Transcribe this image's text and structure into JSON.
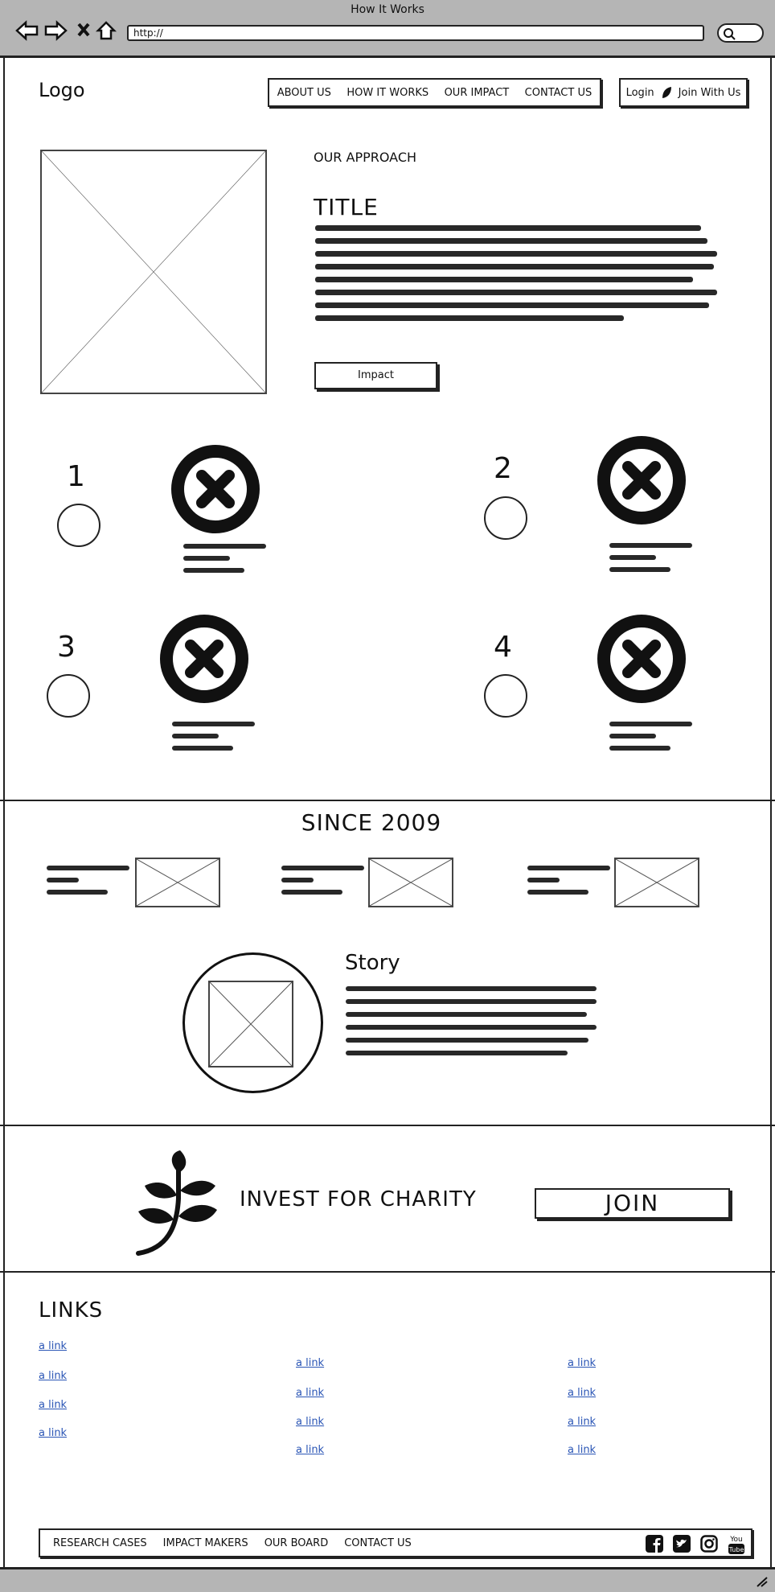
{
  "window": {
    "title": "How It Works",
    "url": "http://"
  },
  "header": {
    "logo": "Logo",
    "nav": [
      "ABOUT US",
      "HOW IT WORKS",
      "OUR IMPACT",
      "CONTACT US"
    ],
    "login": "Login",
    "join": "Join With Us"
  },
  "approach": {
    "eyebrow": "OUR APPROACH",
    "title": "TITLE",
    "button": "Impact"
  },
  "steps": [
    {
      "number": "1"
    },
    {
      "number": "2"
    },
    {
      "number": "3"
    },
    {
      "number": "4"
    }
  ],
  "since": {
    "title": "SINCE 2009"
  },
  "story": {
    "title": "Story"
  },
  "cta": {
    "text": "INVEST FOR CHARITY",
    "button": "JOIN"
  },
  "links": {
    "title": "LINKS",
    "col1": [
      "a link",
      "a link",
      "a link",
      "a link"
    ],
    "col2": [
      "a link",
      "a link",
      "a link",
      "a link"
    ],
    "col3": [
      "a link",
      "a link",
      "a link",
      "a link"
    ]
  },
  "footer": {
    "nav": [
      "RESEARCH CASES",
      "IMPACT MAKERS",
      "OUR BOARD",
      "CONTACT US"
    ],
    "social": [
      "facebook-icon",
      "twitter-icon",
      "instagram-icon",
      "youtube-icon"
    ]
  }
}
